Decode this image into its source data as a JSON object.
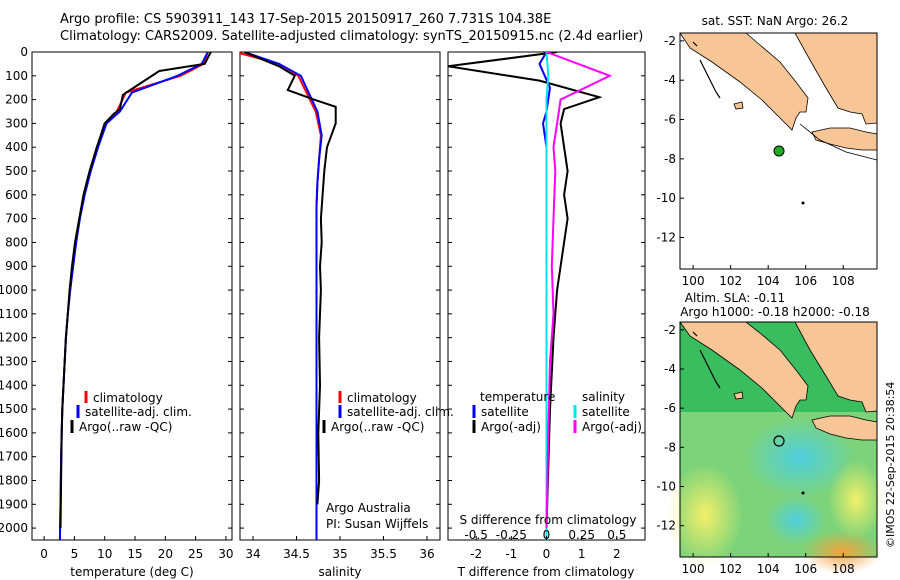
{
  "title_line1": "Argo profile: CS 5903911_143 17-Sep-2015 20150917_260 7.731S 104.38E",
  "title_line2": "Climatology: CARS2009. Satellite-adjusted climatology: synTS_20150915.nc (2.4d earlier)",
  "side_label": "©IMOS 22-Sep-2015 20:38:54",
  "depth_ticks": [
    0,
    100,
    200,
    300,
    400,
    500,
    600,
    700,
    800,
    900,
    1000,
    1100,
    1200,
    1300,
    1400,
    1500,
    1600,
    1700,
    1800,
    1900,
    2000
  ],
  "panels": {
    "temperature": {
      "xlabel": "temperature (deg C)",
      "xticks": [
        0,
        5,
        10,
        15,
        20,
        25,
        30
      ],
      "legend": [
        "climatology",
        "satellite-adj. clim.",
        "Argo(..raw -QC)"
      ]
    },
    "salinity": {
      "xlabel": "salinity",
      "xticks": [
        "34",
        "34.5",
        "35",
        "35.5",
        "36"
      ],
      "legend": [
        "climatology",
        "satellite-adj. clim.",
        "Argo(..raw -QC)"
      ],
      "note_line1": "Argo Australia",
      "note_line2": "PI: Susan Wijffels"
    },
    "difference": {
      "xlabel": "T difference from climatology",
      "toplabel": "S difference from climatology",
      "xticks_T": [
        "-2",
        "-1",
        "0",
        "1",
        "2"
      ],
      "xticks_S": [
        "-0.5",
        "-0.25",
        "0",
        "0.25",
        "0.5"
      ],
      "legend_t_title": "temperature",
      "legend_s_title": "salinity",
      "legend_t": [
        "satellite",
        "Argo(-adj)"
      ],
      "legend_s": [
        "satellite",
        "Argo(-adj)"
      ]
    }
  },
  "map_top": {
    "title": "sat. SST: NaN Argo: 26.2",
    "yticks": [
      "-2",
      "-4",
      "-6",
      "-8",
      "-10",
      "-12"
    ],
    "xticks": [
      "100",
      "102",
      "104",
      "106",
      "108"
    ]
  },
  "map_bottom": {
    "title_line1": "Altim. SLA: -0.11",
    "title_line2": "Argo h1000: -0.18 h2000: -0.18",
    "yticks": [
      "-2",
      "-4",
      "-6",
      "-8",
      "-10",
      "-12"
    ],
    "xticks": [
      "100",
      "102",
      "104",
      "106",
      "108"
    ]
  },
  "colors": {
    "climatology": "#ff0000",
    "satellite_adj": "#0000ff",
    "argo": "#000000",
    "sat_salinity": "#00e5ee",
    "argo_salinity": "#ff00ff",
    "land": "#f8c597",
    "float_marker": "#22aa22"
  },
  "chart_data": [
    {
      "type": "line",
      "ylabel": "",
      "xlabel": "temperature (deg C)",
      "xlim": [
        -2,
        31
      ],
      "ylim": [
        2050,
        0
      ],
      "series": [
        {
          "name": "climatology",
          "x": [
            27.0,
            26.3,
            22.5,
            13.5,
            12.0,
            10.0,
            8.8,
            7.6,
            6.6,
            5.8,
            5.2,
            4.7,
            4.3,
            3.9,
            3.6,
            3.4,
            3.2,
            3.0,
            2.9,
            2.8,
            2.7,
            2.6
          ],
          "y": [
            0,
            50,
            100,
            170,
            250,
            300,
            400,
            500,
            600,
            700,
            800,
            900,
            1000,
            1100,
            1200,
            1300,
            1400,
            1500,
            1600,
            1700,
            1900,
            2050
          ]
        },
        {
          "name": "satellite-adj. clim.",
          "x": [
            27.0,
            26.0,
            22.0,
            14.5,
            12.5,
            10.3,
            8.9,
            7.7,
            6.7,
            5.9,
            5.3,
            4.8,
            4.3,
            3.9,
            3.6,
            3.4,
            3.2,
            3.0,
            2.9,
            2.8,
            2.7,
            2.6
          ],
          "y": [
            0,
            50,
            100,
            170,
            250,
            300,
            400,
            500,
            600,
            700,
            800,
            900,
            1000,
            1100,
            1200,
            1300,
            1400,
            1500,
            1600,
            1700,
            1900,
            2050
          ]
        },
        {
          "name": "Argo(..raw -QC)",
          "x": [
            27.5,
            26.5,
            19.0,
            13.0,
            12.5,
            11.5,
            10.0,
            8.7,
            7.5,
            6.5,
            5.8,
            5.1,
            4.6,
            4.2,
            3.9,
            3.6,
            3.4,
            3.2,
            3.0,
            2.9,
            2.8,
            2.7
          ],
          "y": [
            0,
            50,
            80,
            180,
            240,
            260,
            300,
            400,
            500,
            600,
            700,
            800,
            900,
            1000,
            1100,
            1200,
            1300,
            1400,
            1500,
            1600,
            1800,
            2000
          ]
        }
      ]
    },
    {
      "type": "line",
      "xlabel": "salinity",
      "xlim": [
        33.85,
        36.15
      ],
      "ylim": [
        2050,
        0
      ],
      "series": [
        {
          "name": "climatology",
          "x": [
            33.8,
            34.3,
            34.52,
            34.72,
            34.78,
            34.76,
            34.74,
            34.73,
            34.73,
            34.73,
            34.73,
            34.73,
            34.73,
            34.73,
            34.73,
            34.73,
            34.73,
            34.73,
            34.73
          ],
          "y": [
            0,
            50,
            100,
            250,
            350,
            450,
            550,
            650,
            800,
            900,
            1000,
            1200,
            1400,
            1500,
            1600,
            1700,
            1800,
            1900,
            2050
          ]
        },
        {
          "name": "satellite-adj. clim.",
          "x": [
            33.9,
            34.3,
            34.55,
            34.74,
            34.79,
            34.76,
            34.74,
            34.73,
            34.73,
            34.73,
            34.73,
            34.73,
            34.73,
            34.73,
            34.73,
            34.73,
            34.73,
            34.73,
            34.73
          ],
          "y": [
            0,
            50,
            100,
            250,
            350,
            450,
            550,
            650,
            800,
            900,
            1000,
            1200,
            1400,
            1500,
            1600,
            1700,
            1800,
            1900,
            2050
          ]
        },
        {
          "name": "Argo(..raw -QC)",
          "x": [
            33.9,
            34.3,
            34.48,
            34.4,
            34.7,
            34.95,
            34.95,
            34.85,
            34.82,
            34.8,
            34.78,
            34.79,
            34.77,
            34.78,
            34.76,
            34.77,
            34.75,
            34.76,
            34.74
          ],
          "y": [
            0,
            60,
            100,
            160,
            200,
            230,
            300,
            400,
            500,
            600,
            700,
            800,
            900,
            1000,
            1200,
            1400,
            1600,
            1800,
            1900
          ]
        }
      ]
    },
    {
      "type": "line",
      "xlabel": "T difference from climatology",
      "xlim": [
        -2.8,
        2.8
      ],
      "ylim": [
        2050,
        0
      ],
      "series": [
        {
          "name": "temperature satellite",
          "x": [
            0,
            -0.2,
            0.1,
            0,
            -0.1,
            0,
            0,
            0,
            0,
            0,
            0,
            0,
            0,
            0
          ],
          "y": [
            0,
            50,
            150,
            250,
            300,
            400,
            600,
            800,
            1000,
            1200,
            1400,
            1600,
            1800,
            2050
          ]
        },
        {
          "name": "temperature Argo(-adj)",
          "x": [
            0.3,
            -2.8,
            -0.2,
            1.5,
            0.5,
            0.4,
            0.5,
            0.6,
            0.5,
            0.6,
            0.5,
            0.3,
            0.2,
            0.1,
            0
          ],
          "y": [
            0,
            60,
            120,
            190,
            240,
            300,
            400,
            500,
            600,
            700,
            800,
            1000,
            1200,
            1500,
            2000
          ]
        },
        {
          "name": "salinity satellite",
          "x": [
            0,
            0.05,
            0,
            0,
            0,
            0,
            0,
            0,
            0,
            0,
            0,
            0
          ],
          "y": [
            0,
            100,
            200,
            300,
            400,
            600,
            800,
            1000,
            1200,
            1400,
            1600,
            2050
          ]
        },
        {
          "name": "salinity Argo(-adj)",
          "x": [
            0,
            1.8,
            0.4,
            0.3,
            0.2,
            0.25,
            0.2,
            0.15,
            0.2,
            0.1,
            0.05,
            0
          ],
          "y": [
            0,
            100,
            200,
            300,
            400,
            500,
            700,
            900,
            1100,
            1300,
            1600,
            2000
          ]
        }
      ]
    }
  ]
}
